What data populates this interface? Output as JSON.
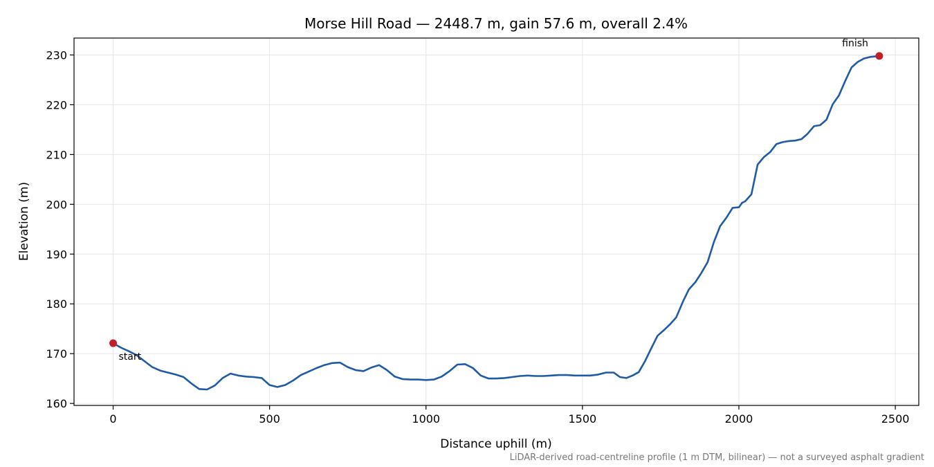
{
  "chart_data": {
    "type": "line",
    "title": "Morse Hill Road — 2448.7 m, gain 57.6 m, overall 2.4%",
    "xlabel": "Distance uphill (m)",
    "ylabel": "Elevation (m)",
    "xlim": [
      -125,
      2575
    ],
    "ylim": [
      159.6,
      233.4
    ],
    "xticks": [
      0,
      500,
      1000,
      1500,
      2000,
      2500
    ],
    "yticks": [
      160,
      170,
      180,
      190,
      200,
      210,
      220,
      230
    ],
    "grid": true,
    "footnote": "LiDAR-derived road-centreline profile (1 m DTM, bilinear) — not a surveyed asphalt gradient",
    "colors": {
      "line": "#1f5aa6",
      "marker": "#c0202a",
      "grid": "#e6e6e6"
    },
    "series": [
      {
        "x": [
          0,
          25,
          50,
          75,
          100,
          125,
          150,
          175,
          200,
          225,
          250,
          275,
          300,
          325,
          350,
          375,
          400,
          425,
          450,
          475,
          500,
          525,
          550,
          575,
          600,
          625,
          650,
          675,
          700,
          725,
          750,
          775,
          800,
          825,
          850,
          875,
          900,
          925,
          950,
          975,
          1000,
          1025,
          1050,
          1075,
          1100,
          1125,
          1150,
          1175,
          1200,
          1225,
          1250,
          1275,
          1300,
          1325,
          1350,
          1375,
          1400,
          1425,
          1450,
          1475,
          1500,
          1525,
          1550,
          1575,
          1600,
          1620,
          1640,
          1660,
          1680,
          1700,
          1720,
          1740,
          1760,
          1780,
          1800,
          1820,
          1840,
          1860,
          1880,
          1900,
          1920,
          1940,
          1960,
          1980,
          2000,
          2010,
          2020,
          2040,
          2060,
          2080,
          2100,
          2120,
          2140,
          2160,
          2180,
          2200,
          2220,
          2240,
          2260,
          2280,
          2300,
          2320,
          2340,
          2360,
          2380,
          2400,
          2420,
          2448.7
        ],
        "y": [
          172.1,
          171.2,
          170.5,
          169.7,
          168.5,
          167.3,
          166.6,
          166.2,
          165.8,
          165.3,
          164.0,
          162.9,
          162.8,
          163.6,
          165.1,
          166.0,
          165.6,
          165.4,
          165.3,
          165.1,
          163.7,
          163.3,
          163.7,
          164.6,
          165.7,
          166.4,
          167.1,
          167.7,
          168.1,
          168.2,
          167.3,
          166.7,
          166.5,
          167.2,
          167.7,
          166.7,
          165.4,
          164.9,
          164.8,
          164.8,
          164.7,
          164.8,
          165.4,
          166.5,
          167.8,
          167.9,
          167.1,
          165.6,
          165.0,
          165.0,
          165.1,
          165.3,
          165.5,
          165.6,
          165.5,
          165.5,
          165.6,
          165.7,
          165.7,
          165.6,
          165.6,
          165.6,
          165.8,
          166.2,
          166.2,
          165.3,
          165.1,
          165.6,
          166.3,
          168.5,
          171.1,
          173.6,
          174.7,
          175.9,
          177.3,
          180.3,
          182.9,
          184.3,
          186.2,
          188.4,
          192.4,
          195.6,
          197.3,
          199.3,
          199.4,
          200.3,
          200.6,
          202.0,
          208.0,
          209.5,
          210.5,
          212.1,
          212.5,
          212.7,
          212.8,
          213.1,
          214.2,
          215.7,
          215.9,
          217.0,
          220.1,
          221.9,
          224.8,
          227.5,
          228.6,
          229.3,
          229.6,
          229.8
        ]
      }
    ],
    "annotations": [
      {
        "label": "start",
        "x": 0,
        "y": 172.1
      },
      {
        "label": "finish",
        "x": 2448.7,
        "y": 229.8
      }
    ]
  }
}
